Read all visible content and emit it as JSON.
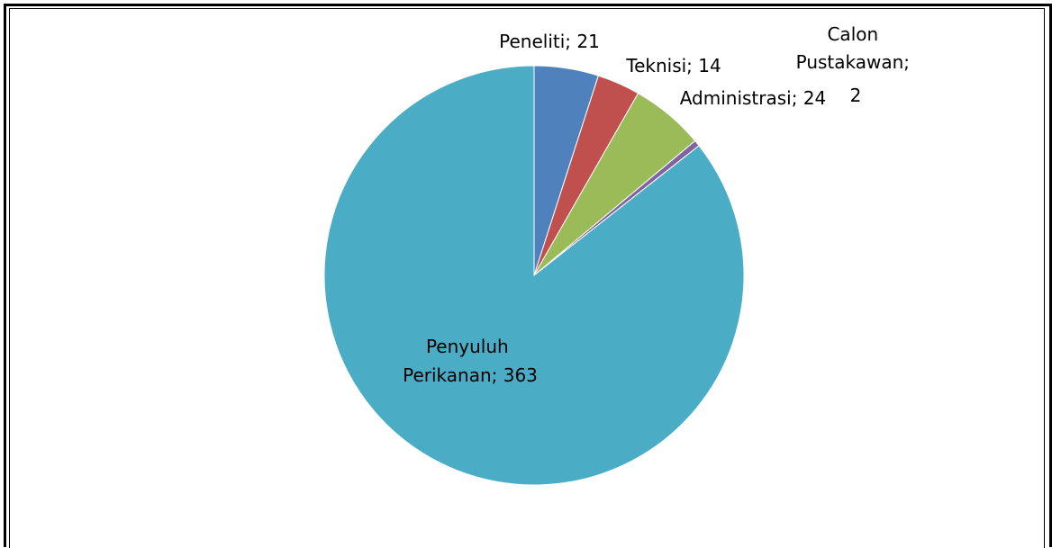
{
  "chart_data": {
    "type": "pie",
    "categories": [
      "Peneliti",
      "Teknisi",
      "Administrasi",
      "Calon Pustakawan",
      "Penyuluh Perikanan"
    ],
    "values": [
      21,
      14,
      24,
      2,
      363
    ],
    "colors": [
      "#4f81bd",
      "#c0504d",
      "#9bbb59",
      "#8064a2",
      "#4bacc6"
    ],
    "labels": [
      {
        "lines": [
          "Peneliti; 21"
        ]
      },
      {
        "lines": [
          "Teknisi; 14"
        ]
      },
      {
        "lines": [
          "Administrasi; 24"
        ]
      },
      {
        "lines": [
          "Calon",
          "Pustakawan;",
          "2"
        ]
      },
      {
        "lines": [
          "Penyuluh",
          "Perikanan; 363"
        ]
      }
    ],
    "legend": "none"
  }
}
